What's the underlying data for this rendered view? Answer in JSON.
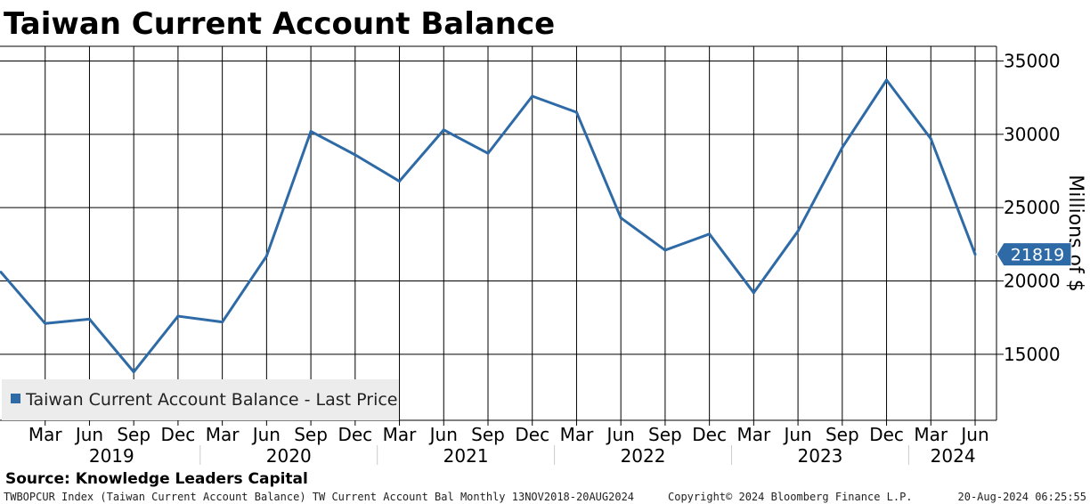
{
  "title": "Taiwan Current Account Balance",
  "source": "Source: Knowledge Leaders Capital",
  "footer": {
    "left": "TWBOPCUR Index (Taiwan Current Account Balance) TW Current Account Bal  Monthly 13NOV2018-20AUG2024",
    "center": "Copyright© 2024 Bloomberg Finance L.P.",
    "right": "20-Aug-2024 06:25:55"
  },
  "colors": {
    "line": "#2e6aa6",
    "grid": "#000000",
    "legend_bg": "#ececec"
  },
  "chart_data": {
    "type": "line",
    "ylabel": "Millions of $",
    "ylim": [
      10500,
      36000
    ],
    "yticks": [
      15000,
      20000,
      25000,
      30000,
      35000
    ],
    "legend": "Taiwan Current Account Balance - Last Price",
    "legend_position": "bottom-left",
    "last_value_label": "21819",
    "grid": true,
    "month_labels": [
      "Mar",
      "Jun",
      "Sep",
      "Dec",
      "Mar",
      "Jun",
      "Sep",
      "Dec",
      "Mar",
      "Jun",
      "Sep",
      "Dec",
      "Mar",
      "Jun",
      "Sep",
      "Dec",
      "Mar",
      "Jun",
      "Sep",
      "Dec",
      "Mar",
      "Jun"
    ],
    "year_labels": [
      "2019",
      "2020",
      "2021",
      "2022",
      "2023",
      "2024"
    ],
    "series": [
      {
        "name": "Taiwan Current Account Balance - Last Price",
        "x": [
          "2018-12",
          "2019-03",
          "2019-06",
          "2019-09",
          "2019-12",
          "2020-03",
          "2020-06",
          "2020-09",
          "2020-12",
          "2021-03",
          "2021-06",
          "2021-09",
          "2021-12",
          "2022-03",
          "2022-06",
          "2022-09",
          "2022-12",
          "2023-03",
          "2023-06",
          "2023-09",
          "2023-12",
          "2024-03",
          "2024-06"
        ],
        "values": [
          20600,
          17100,
          17400,
          13800,
          17600,
          17200,
          21700,
          30200,
          28600,
          26800,
          30300,
          28700,
          32600,
          31500,
          24300,
          22100,
          23200,
          19200,
          23400,
          29100,
          33700,
          29700,
          21819
        ]
      }
    ]
  }
}
